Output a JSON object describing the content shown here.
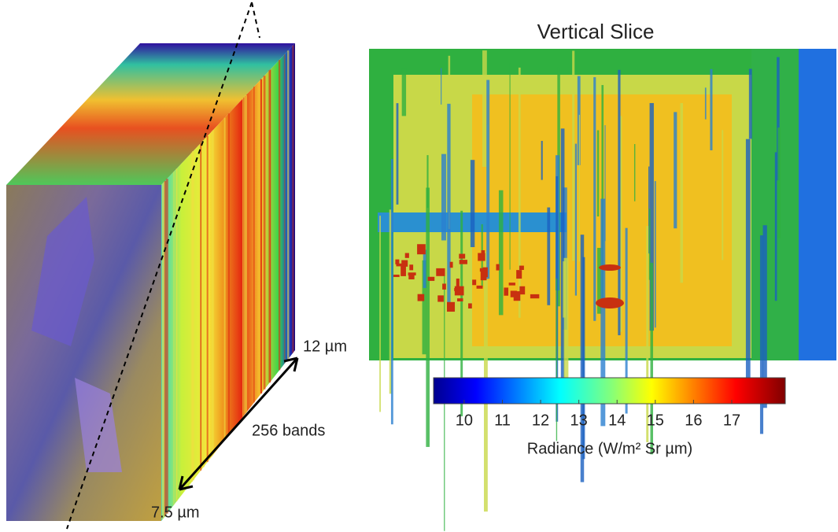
{
  "title": "Vertical Slice",
  "colorbar": {
    "lim": [
      9.2,
      18.4
    ],
    "ticks": [
      10,
      11,
      12,
      13,
      14,
      15,
      16,
      17
    ],
    "label": "Radiance (W/m² Sr µm)"
  },
  "annotations": {
    "top_wavelength": "12 µm",
    "bands": "256 bands",
    "bottom_wavelength": "7.5 µm"
  }
}
